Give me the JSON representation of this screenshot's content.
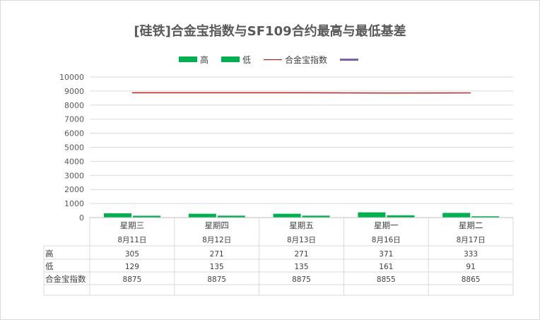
{
  "title": "[硅铁]合金宝指数与SF109合约最高与最低基差",
  "legend": [
    {
      "label": "高",
      "kind": "bar",
      "color": "#00b050"
    },
    {
      "label": "低",
      "kind": "bar",
      "color": "#00b050"
    },
    {
      "label": "合金宝指数",
      "kind": "line",
      "color": "#c00000"
    },
    {
      "label": "",
      "kind": "line",
      "color": "#7f5fa8"
    }
  ],
  "chart_data": {
    "type": "bar",
    "categories": [
      "星期三",
      "星期四",
      "星期五",
      "星期一",
      "星期二"
    ],
    "dates": [
      "8月11日",
      "8月12日",
      "8月13日",
      "8月16日",
      "8月17日"
    ],
    "series": [
      {
        "name": "高",
        "type": "bar",
        "color": "#00b050",
        "values": [
          305,
          271,
          271,
          371,
          333
        ]
      },
      {
        "name": "低",
        "type": "bar",
        "color": "#00b050",
        "values": [
          129,
          135,
          135,
          161,
          91
        ]
      },
      {
        "name": "合金宝指数",
        "type": "line",
        "color": "#c00000",
        "values": [
          8875,
          8875,
          8875,
          8855,
          8865
        ]
      }
    ],
    "ylim": [
      0,
      10000
    ],
    "yticks": [
      "0",
      "1000",
      "2000",
      "3000",
      "4000",
      "5000",
      "6000",
      "7000",
      "8000",
      "9000",
      "10000"
    ],
    "grid": true,
    "legend_position": "top",
    "table": {
      "row_labels": [
        "高",
        "低",
        "合金宝指数"
      ],
      "rows": [
        [
          "305",
          "271",
          "271",
          "371",
          "333"
        ],
        [
          "129",
          "135",
          "135",
          "161",
          "91"
        ],
        [
          "8875",
          "8875",
          "8875",
          "8855",
          "8865"
        ]
      ]
    }
  }
}
